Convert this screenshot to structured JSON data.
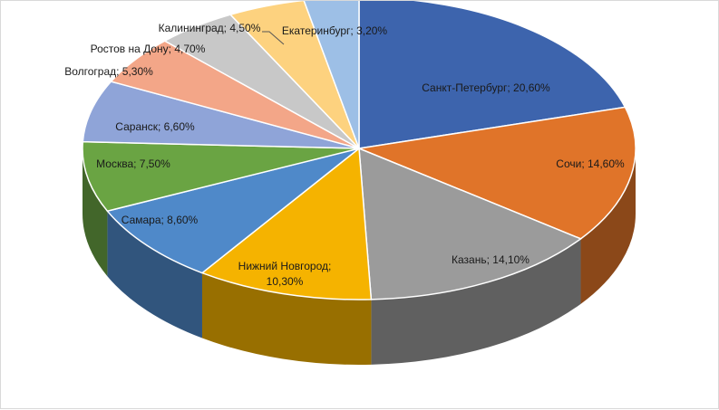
{
  "chart_data": {
    "type": "pie",
    "style": "3d",
    "title": "",
    "slices": [
      {
        "label": "Санкт-Петербург; 20,60%",
        "value": 20.6,
        "color": "#3d64ad"
      },
      {
        "label": "Сочи; 14,60%",
        "value": 14.6,
        "color": "#e07429"
      },
      {
        "label": "Казань; 14,10%",
        "value": 14.1,
        "color": "#9b9b9b"
      },
      {
        "label": "Нижний Новгород;",
        "label2": "10,30%",
        "value": 10.3,
        "color": "#f5b300"
      },
      {
        "label": "Самара; 8,60%",
        "value": 8.6,
        "color": "#4f89c9"
      },
      {
        "label": "Москва; 7,50%",
        "value": 7.5,
        "color": "#6aa443"
      },
      {
        "label": "Саранск; 6,60%",
        "value": 6.6,
        "color": "#8fa4d8"
      },
      {
        "label": "Волгоград; 5,30%",
        "value": 5.3,
        "color": "#f3a688"
      },
      {
        "label": "Ростов на Дону; 4,70%",
        "value": 4.7,
        "color": "#c8c8c8"
      },
      {
        "label": "Калининград; 4,50%",
        "value": 4.5,
        "color": "#fdd27f"
      },
      {
        "label": "Екатеринбург; 3,20%",
        "value": 3.2,
        "color": "#9dbfe6"
      }
    ]
  }
}
